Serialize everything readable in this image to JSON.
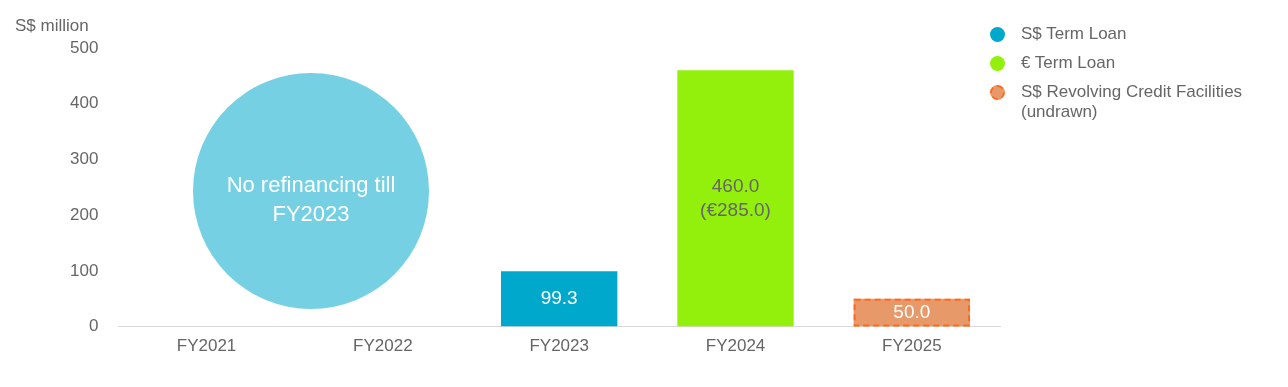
{
  "chart_data": {
    "type": "bar",
    "ylabel": "S$ million",
    "categories": [
      "FY2021",
      "FY2022",
      "FY2023",
      "FY2024",
      "FY2025"
    ],
    "stacked": true,
    "ylim": [
      0,
      500
    ],
    "yticks": [
      0,
      100,
      200,
      300,
      400,
      500
    ],
    "grid": false,
    "legend": "top right",
    "series": [
      {
        "name": "S$ Term Loan",
        "color": "#00a9cc",
        "values": [
          null,
          null,
          99.3,
          null,
          null
        ],
        "value_labels": [
          null,
          null,
          "99.3",
          null,
          null
        ]
      },
      {
        "name": "€ Term Loan",
        "color": "#92f00c",
        "values": [
          null,
          null,
          null,
          460.0,
          null
        ],
        "value_labels": [
          null,
          null,
          null,
          "460.0\n(€285.0)",
          null
        ]
      },
      {
        "name": "S$ Revolving Credit Facilities (undrawn)",
        "color": "#e8996a",
        "line_style": "dashed",
        "values": [
          null,
          null,
          null,
          null,
          50.0
        ],
        "value_labels": [
          null,
          null,
          null,
          null,
          "50.0"
        ]
      }
    ],
    "annotations": [
      "No refinancing till FY2023"
    ]
  }
}
